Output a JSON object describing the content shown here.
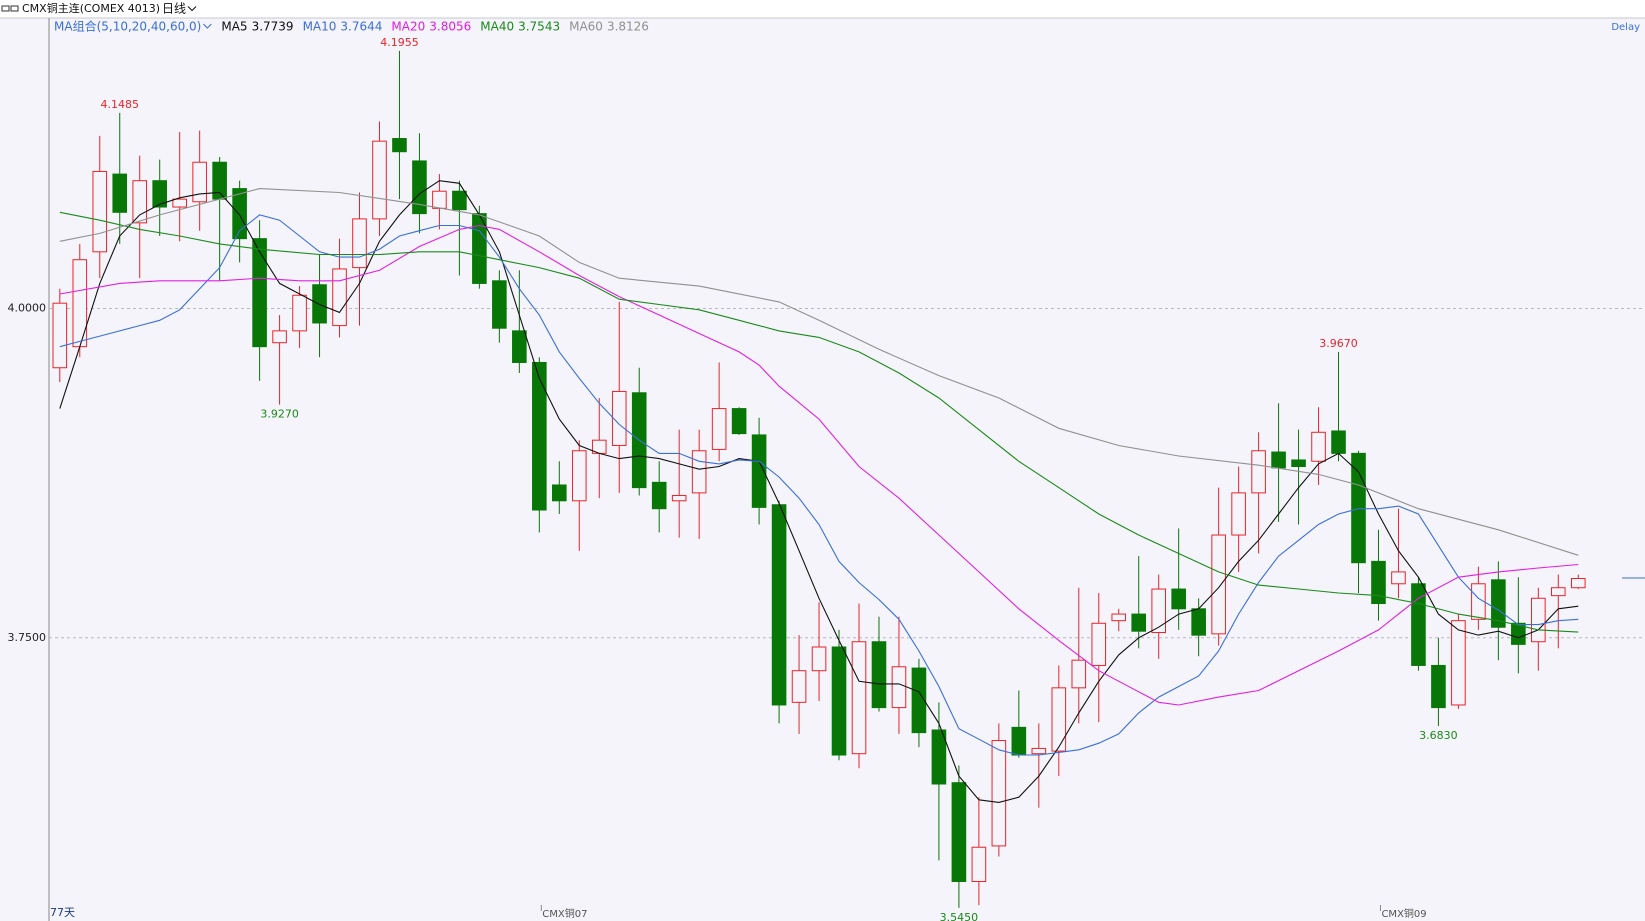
{
  "chart_data": {
    "type": "candlestick",
    "title": "CMX铜主连(COMEX 4013)",
    "period": "日线",
    "ma_group": "MA组合(5,10,20,40,60,0)",
    "delay": "Delay",
    "count_label": "77天",
    "up_color": "#e8252b",
    "down_color": "#087708",
    "ylim": [
      3.535,
      4.2205
    ],
    "yticks": [
      {
        "value": 4,
        "label": "4.0000"
      },
      {
        "value": 3.75,
        "label": "3.7500"
      }
    ],
    "grid": true,
    "categories": [
      null,
      null,
      null,
      null,
      null,
      null,
      null,
      null,
      null,
      null,
      null,
      null,
      null,
      null,
      null,
      null,
      null,
      null,
      null,
      null,
      null,
      null,
      null,
      null,
      null,
      "CMX铜07",
      null,
      null,
      null,
      null,
      null,
      null,
      null,
      null,
      null,
      null,
      null,
      null,
      null,
      null,
      null,
      null,
      null,
      null,
      null,
      null,
      null,
      null,
      null,
      null,
      null,
      null,
      null,
      null,
      null,
      null,
      null,
      null,
      null,
      null,
      null,
      null,
      null,
      null,
      null,
      null,
      null,
      "CMX铜09",
      null,
      null,
      null,
      null,
      null,
      null,
      null,
      null,
      null
    ],
    "open": [
      3.955,
      3.971,
      4.043,
      4.102,
      4.065,
      4.097,
      4.077,
      4.081,
      4.111,
      4.091,
      4.053,
      3.974,
      3.983,
      4.018,
      3.987,
      4.031,
      4.068,
      4.129,
      4.112,
      4.076,
      4.089,
      4.072,
      4.021,
      3.983,
      3.959,
      3.866,
      3.854,
      3.89,
      3.896,
      3.936,
      3.868,
      3.854,
      3.86,
      3.893,
      3.924,
      3.904,
      3.851,
      3.701,
      3.725,
      3.743,
      3.662,
      3.747,
      3.697,
      3.727,
      3.68,
      3.64,
      3.565,
      3.592,
      3.682,
      3.662,
      3.664,
      3.712,
      3.729,
      3.763,
      3.768,
      3.754,
      3.787,
      3.772,
      3.753,
      3.828,
      3.86,
      3.891,
      3.885,
      3.884,
      3.907,
      3.89,
      3.808,
      3.791,
      3.791,
      3.729,
      3.699,
      3.764,
      3.794,
      3.761,
      3.747,
      3.782,
      3.788
    ],
    "high": [
      4.015,
      4.049,
      4.131,
      4.1485,
      4.116,
      4.113,
      4.134,
      4.135,
      4.115,
      4.097,
      4.067,
      3.995,
      4.017,
      4.041,
      4.053,
      4.088,
      4.142,
      4.1955,
      4.133,
      4.102,
      4.097,
      4.078,
      4.029,
      4.029,
      3.963,
      3.884,
      3.9,
      3.932,
      4.005,
      3.955,
      3.884,
      3.908,
      3.908,
      3.959,
      3.925,
      3.917,
      3.854,
      3.752,
      3.777,
      3.756,
      3.776,
      3.766,
      3.766,
      3.734,
      3.701,
      3.653,
      3.629,
      3.685,
      3.71,
      3.685,
      3.729,
      3.788,
      3.784,
      3.772,
      3.812,
      3.798,
      3.833,
      3.78,
      3.864,
      3.88,
      3.906,
      3.928,
      3.908,
      3.925,
      3.967,
      3.892,
      3.832,
      3.848,
      3.796,
      3.75,
      3.768,
      3.804,
      3.808,
      3.796,
      3.788,
      3.798,
      3.798
    ],
    "low": [
      3.944,
      3.963,
      4.023,
      4.049,
      4.023,
      4.055,
      4.051,
      4.059,
      4.021,
      4.035,
      3.945,
      3.927,
      3.97,
      3.963,
      3.978,
      3.987,
      4.055,
      4.083,
      4.057,
      4.06,
      4.025,
      4.015,
      3.974,
      3.951,
      3.83,
      3.844,
      3.816,
      3.856,
      3.86,
      3.858,
      3.83,
      3.826,
      3.825,
      3.884,
      3.904,
      3.836,
      3.685,
      3.677,
      3.702,
      3.657,
      3.651,
      3.694,
      3.677,
      3.667,
      3.581,
      3.545,
      3.547,
      3.584,
      3.659,
      3.621,
      3.645,
      3.685,
      3.686,
      3.755,
      3.742,
      3.734,
      3.756,
      3.736,
      3.744,
      3.8,
      3.814,
      3.838,
      3.836,
      3.866,
      3.884,
      3.784,
      3.763,
      3.78,
      3.725,
      3.683,
      3.696,
      3.756,
      3.733,
      3.723,
      3.725,
      3.742,
      3.787
    ],
    "close": [
      4.004,
      4.037,
      4.104,
      4.073,
      4.097,
      4.077,
      4.083,
      4.111,
      4.083,
      4.053,
      3.971,
      3.983,
      4.01,
      3.989,
      4.03,
      4.068,
      4.127,
      4.119,
      4.072,
      4.089,
      4.075,
      4.019,
      3.985,
      3.959,
      3.847,
      3.854,
      3.892,
      3.9,
      3.937,
      3.864,
      3.848,
      3.858,
      3.892,
      3.924,
      3.905,
      3.849,
      3.699,
      3.725,
      3.743,
      3.661,
      3.747,
      3.697,
      3.728,
      3.678,
      3.639,
      3.565,
      3.591,
      3.672,
      3.661,
      3.666,
      3.712,
      3.733,
      3.761,
      3.768,
      3.755,
      3.787,
      3.772,
      3.752,
      3.828,
      3.86,
      3.892,
      3.879,
      3.88,
      3.906,
      3.89,
      3.807,
      3.776,
      3.8,
      3.729,
      3.697,
      3.763,
      3.791,
      3.758,
      3.745,
      3.78,
      3.788,
      3.795
    ],
    "series": [
      {
        "name": "MA5",
        "value": 3.7739,
        "color": "#111111",
        "values": [
          3.924,
          3.971,
          4.019,
          4.055,
          4.071,
          4.079,
          4.084,
          4.087,
          4.088,
          4.071,
          4.043,
          4.019,
          4.011,
          4.003,
          3.997,
          4.019,
          4.051,
          4.071,
          4.087,
          4.097,
          4.095,
          4.071,
          4.043,
          3.995,
          3.947,
          3.916,
          3.896,
          3.89,
          3.886,
          3.888,
          3.886,
          3.882,
          3.878,
          3.88,
          3.886,
          3.884,
          3.852,
          3.816,
          3.78,
          3.748,
          3.717,
          3.715,
          3.715,
          3.709,
          3.685,
          3.645,
          3.627,
          3.625,
          3.629,
          3.645,
          3.667,
          3.693,
          3.717,
          3.737,
          3.75,
          3.758,
          3.768,
          3.772,
          3.788,
          3.808,
          3.824,
          3.844,
          3.864,
          3.882,
          3.89,
          3.876,
          3.844,
          3.816,
          3.796,
          3.768,
          3.756,
          3.752,
          3.755,
          3.75,
          3.756,
          3.772,
          3.774
        ]
      },
      {
        "name": "MA10",
        "value": 3.7644,
        "color": "#3a6fd8",
        "values": [
          3.971,
          3.975,
          3.979,
          3.983,
          3.987,
          3.991,
          3.999,
          4.015,
          4.031,
          4.059,
          4.071,
          4.067,
          4.055,
          4.043,
          4.039,
          4.039,
          4.045,
          4.055,
          4.059,
          4.063,
          4.063,
          4.059,
          4.039,
          4.015,
          3.995,
          3.967,
          3.947,
          3.928,
          3.912,
          3.9,
          3.89,
          3.89,
          3.884,
          3.882,
          3.885,
          3.884,
          3.872,
          3.856,
          3.836,
          3.808,
          3.792,
          3.779,
          3.764,
          3.74,
          3.713,
          3.681,
          3.673,
          3.665,
          3.661,
          3.661,
          3.663,
          3.665,
          3.67,
          3.677,
          3.693,
          3.705,
          3.713,
          3.721,
          3.74,
          3.768,
          3.792,
          3.812,
          3.824,
          3.836,
          3.844,
          3.848,
          3.848,
          3.85,
          3.844,
          3.82,
          3.796,
          3.78,
          3.771,
          3.76,
          3.76,
          3.763,
          3.764
        ]
      },
      {
        "name": "MA20",
        "value": 3.8056,
        "color": "#e020e0",
        "x": [
          0,
          3,
          5,
          8,
          10,
          12,
          14,
          16,
          18,
          20,
          21,
          22,
          24,
          26,
          28,
          30,
          32,
          34,
          35,
          36,
          38,
          40,
          42,
          44,
          46,
          48,
          50,
          52,
          54,
          55,
          56,
          58,
          60,
          62,
          64,
          66,
          68,
          70,
          72,
          74,
          76
        ],
        "values": [
          4.011,
          4.019,
          4.021,
          4.021,
          4.023,
          4.021,
          4.021,
          4.029,
          4.047,
          4.06,
          4.063,
          4.06,
          4.043,
          4.025,
          4.009,
          3.995,
          3.981,
          3.967,
          3.957,
          3.941,
          3.916,
          3.88,
          3.856,
          3.828,
          3.8,
          3.772,
          3.748,
          3.725,
          3.709,
          3.701,
          3.699,
          3.705,
          3.71,
          3.725,
          3.74,
          3.756,
          3.78,
          3.796,
          3.8,
          3.803,
          3.8056
        ]
      },
      {
        "name": "MA40",
        "value": 3.7543,
        "color": "#1a8a1a",
        "x": [
          0,
          2,
          4,
          6,
          8,
          10,
          13,
          16,
          18,
          20,
          22,
          24,
          26,
          28,
          30,
          32,
          34,
          36,
          38,
          40,
          42,
          44,
          46,
          48,
          50,
          52,
          54,
          56,
          58,
          60,
          62,
          64,
          66,
          68,
          70,
          72,
          74,
          76
        ],
        "values": [
          4.073,
          4.067,
          4.06,
          4.055,
          4.049,
          4.045,
          4.041,
          4.041,
          4.043,
          4.043,
          4.037,
          4.031,
          4.023,
          4.007,
          4.003,
          3.999,
          3.991,
          3.983,
          3.978,
          3.967,
          3.951,
          3.932,
          3.908,
          3.884,
          3.864,
          3.844,
          3.828,
          3.814,
          3.8,
          3.79,
          3.787,
          3.784,
          3.782,
          3.776,
          3.768,
          3.763,
          3.756,
          3.7543
        ]
      },
      {
        "name": "MA60",
        "value": 3.8126,
        "color": "#909090",
        "x": [
          0,
          2,
          5,
          10,
          14,
          18,
          21,
          24,
          26,
          28,
          32,
          36,
          38,
          41,
          44,
          47,
          50,
          53,
          56,
          60,
          63,
          65,
          68,
          72,
          76
        ],
        "values": [
          4.051,
          4.057,
          4.071,
          4.091,
          4.088,
          4.079,
          4.071,
          4.055,
          4.035,
          4.023,
          4.017,
          4.005,
          3.991,
          3.969,
          3.949,
          3.932,
          3.909,
          3.896,
          3.888,
          3.881,
          3.874,
          3.866,
          3.848,
          3.832,
          3.8126
        ]
      }
    ],
    "annotations": [
      {
        "index": 3,
        "value": 4.1485,
        "label": "4.1485",
        "color": "#e8252b"
      },
      {
        "index": 17,
        "value": 4.1955,
        "label": "4.1955",
        "color": "#e8252b"
      },
      {
        "index": 11,
        "value": 3.927,
        "label": "3.9270",
        "color": "#1a8a1a"
      },
      {
        "index": 45,
        "value": 3.545,
        "label": "3.5450",
        "color": "#1a8a1a"
      },
      {
        "index": 64,
        "value": 3.967,
        "label": "3.9670",
        "color": "#e8252b"
      },
      {
        "index": 69,
        "value": 3.683,
        "label": "3.6830",
        "color": "#1a8a1a"
      }
    ]
  }
}
